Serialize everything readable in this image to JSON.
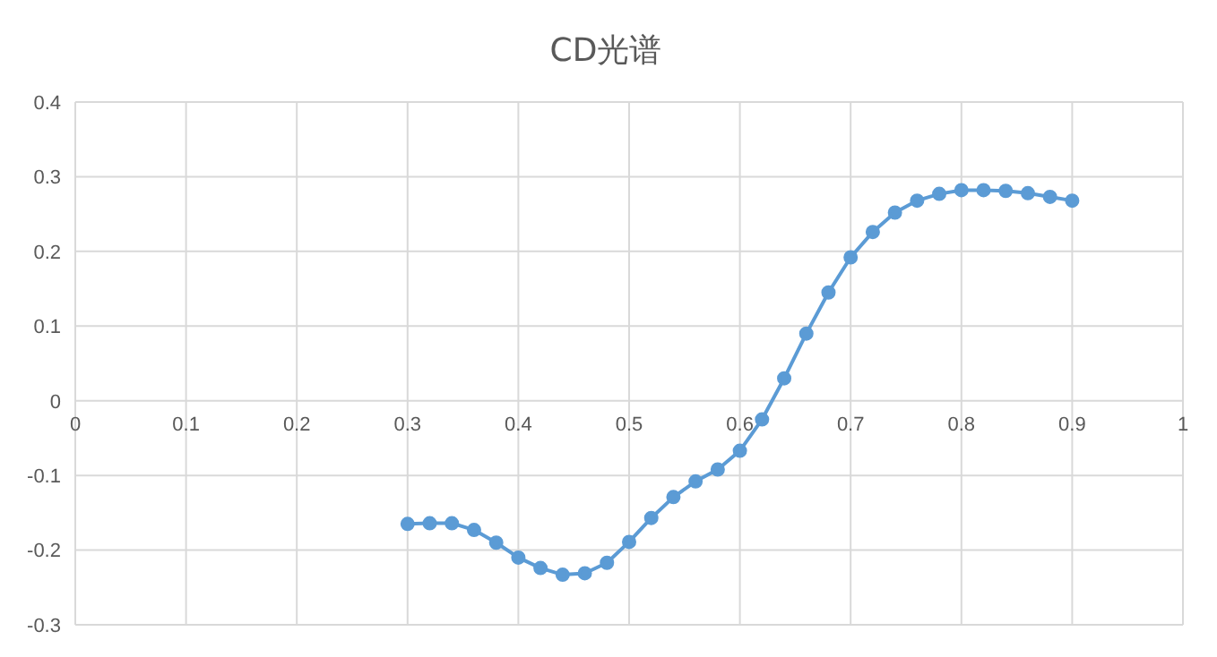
{
  "chart_data": {
    "type": "line",
    "title": "CD光谱",
    "x": [
      0.3,
      0.32,
      0.34,
      0.36,
      0.38,
      0.4,
      0.42,
      0.44,
      0.46,
      0.48,
      0.5,
      0.52,
      0.54,
      0.56,
      0.58,
      0.6,
      0.62,
      0.64,
      0.66,
      0.68,
      0.7,
      0.72,
      0.74,
      0.76,
      0.78,
      0.8,
      0.82,
      0.84,
      0.86,
      0.88,
      0.9
    ],
    "series": [
      {
        "color": "#5b9bd5",
        "values": [
          -0.165,
          -0.164,
          -0.164,
          -0.173,
          -0.19,
          -0.21,
          -0.224,
          -0.233,
          -0.231,
          -0.217,
          -0.189,
          -0.157,
          -0.129,
          -0.108,
          -0.092,
          -0.067,
          -0.025,
          0.03,
          0.09,
          0.145,
          0.192,
          0.226,
          0.252,
          0.268,
          0.277,
          0.282,
          0.282,
          0.281,
          0.278,
          0.273,
          0.268
        ]
      }
    ],
    "xlim": [
      0,
      1
    ],
    "xticks": [
      0,
      0.1,
      0.2,
      0.3,
      0.4,
      0.5,
      0.6,
      0.7,
      0.8,
      0.9,
      1
    ],
    "ylim": [
      -0.3,
      0.4
    ],
    "yticks": [
      -0.3,
      -0.2,
      -0.1,
      0,
      0.1,
      0.2,
      0.3,
      0.4
    ],
    "grid": true,
    "marker": "circle",
    "line_style": "solid",
    "legend": false
  }
}
